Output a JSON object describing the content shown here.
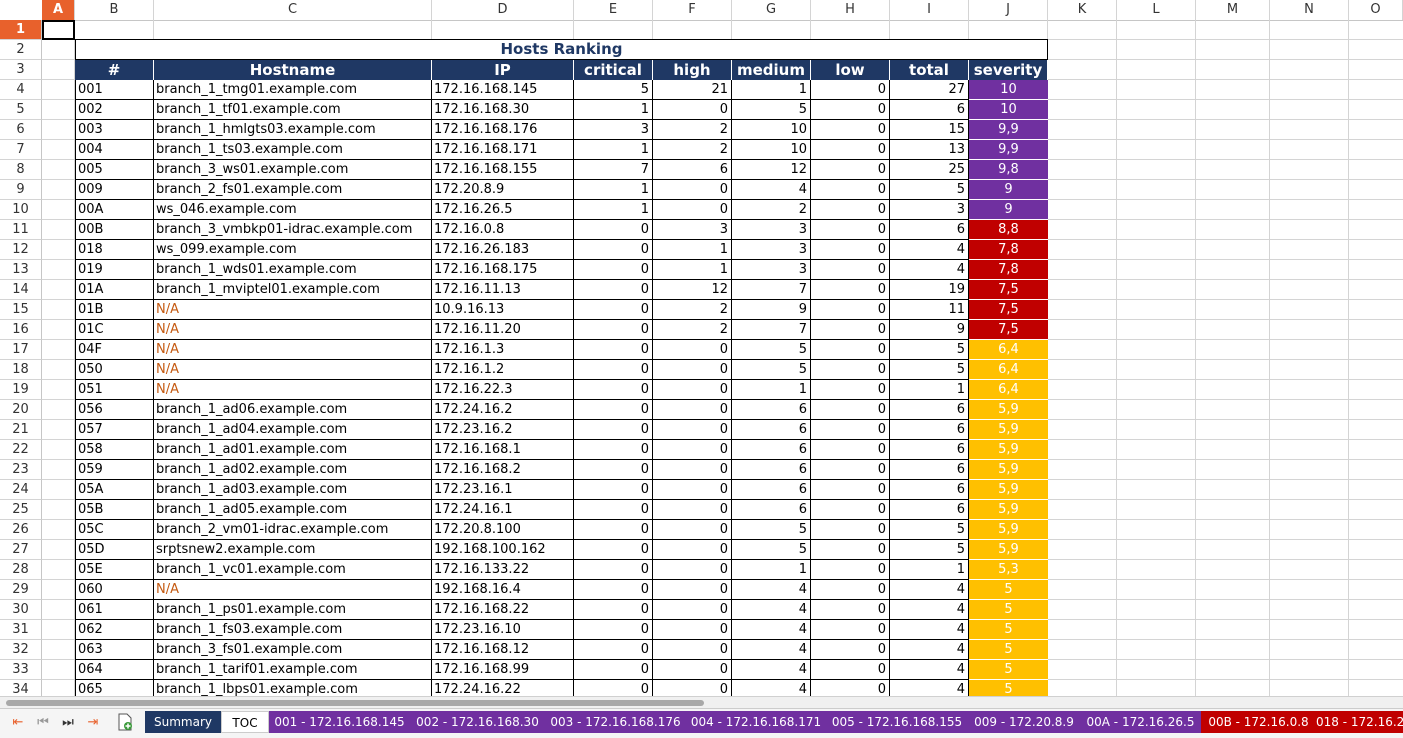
{
  "columns": [
    "A",
    "B",
    "C",
    "D",
    "E",
    "F",
    "G",
    "H",
    "I",
    "J",
    "K",
    "L",
    "M",
    "N",
    "O"
  ],
  "active_column": "A",
  "active_row": "1",
  "rows": [
    "1",
    "2",
    "3",
    "4",
    "5",
    "6",
    "7",
    "8",
    "9",
    "10",
    "11",
    "12",
    "13",
    "14",
    "15",
    "16",
    "17",
    "18",
    "19",
    "20",
    "21",
    "22",
    "23",
    "24",
    "25",
    "26",
    "27",
    "28",
    "29",
    "30",
    "31",
    "32",
    "33",
    "34"
  ],
  "sheet_title": "Hosts Ranking",
  "headers": [
    "#",
    "Hostname",
    "IP",
    "critical",
    "high",
    "medium",
    "low",
    "total",
    "severity"
  ],
  "severity_colors": {
    "purple": "#7030a0",
    "red": "#c00000",
    "orange": "#ffc000"
  },
  "hosts": [
    {
      "id": "001",
      "host": "branch_1_tmg01.example.com",
      "ip": "172.16.168.145",
      "critical": "5",
      "high": "21",
      "medium": "1",
      "low": "0",
      "total": "27",
      "severity": "10",
      "level": "purple"
    },
    {
      "id": "002",
      "host": "branch_1_tf01.example.com",
      "ip": "172.16.168.30",
      "critical": "1",
      "high": "0",
      "medium": "5",
      "low": "0",
      "total": "6",
      "severity": "10",
      "level": "purple"
    },
    {
      "id": "003",
      "host": "branch_1_hmlgts03.example.com",
      "ip": "172.16.168.176",
      "critical": "3",
      "high": "2",
      "medium": "10",
      "low": "0",
      "total": "15",
      "severity": "9,9",
      "level": "purple"
    },
    {
      "id": "004",
      "host": "branch_1_ts03.example.com",
      "ip": "172.16.168.171",
      "critical": "1",
      "high": "2",
      "medium": "10",
      "low": "0",
      "total": "13",
      "severity": "9,9",
      "level": "purple"
    },
    {
      "id": "005",
      "host": "branch_3_ws01.example.com",
      "ip": "172.16.168.155",
      "critical": "7",
      "high": "6",
      "medium": "12",
      "low": "0",
      "total": "25",
      "severity": "9,8",
      "level": "purple"
    },
    {
      "id": "009",
      "host": "branch_2_fs01.example.com",
      "ip": "172.20.8.9",
      "critical": "1",
      "high": "0",
      "medium": "4",
      "low": "0",
      "total": "5",
      "severity": "9",
      "level": "purple"
    },
    {
      "id": "00A",
      "host": "ws_046.example.com",
      "ip": "172.16.26.5",
      "critical": "1",
      "high": "0",
      "medium": "2",
      "low": "0",
      "total": "3",
      "severity": "9",
      "level": "purple"
    },
    {
      "id": "00B",
      "host": "branch_3_vmbkp01-idrac.example.com",
      "ip": "172.16.0.8",
      "critical": "0",
      "high": "3",
      "medium": "3",
      "low": "0",
      "total": "6",
      "severity": "8,8",
      "level": "red"
    },
    {
      "id": "018",
      "host": "ws_099.example.com",
      "ip": "172.16.26.183",
      "critical": "0",
      "high": "1",
      "medium": "3",
      "low": "0",
      "total": "4",
      "severity": "7,8",
      "level": "red"
    },
    {
      "id": "019",
      "host": "branch_1_wds01.example.com",
      "ip": "172.16.168.175",
      "critical": "0",
      "high": "1",
      "medium": "3",
      "low": "0",
      "total": "4",
      "severity": "7,8",
      "level": "red"
    },
    {
      "id": "01A",
      "host": "branch_1_mviptel01.example.com",
      "ip": "172.16.11.13",
      "critical": "0",
      "high": "12",
      "medium": "7",
      "low": "0",
      "total": "19",
      "severity": "7,5",
      "level": "red"
    },
    {
      "id": "01B",
      "host": "N/A",
      "ip": "10.9.16.13",
      "critical": "0",
      "high": "2",
      "medium": "9",
      "low": "0",
      "total": "11",
      "severity": "7,5",
      "level": "red"
    },
    {
      "id": "01C",
      "host": "N/A",
      "ip": "172.16.11.20",
      "critical": "0",
      "high": "2",
      "medium": "7",
      "low": "0",
      "total": "9",
      "severity": "7,5",
      "level": "red"
    },
    {
      "id": "04F",
      "host": "N/A",
      "ip": "172.16.1.3",
      "critical": "0",
      "high": "0",
      "medium": "5",
      "low": "0",
      "total": "5",
      "severity": "6,4",
      "level": "orange"
    },
    {
      "id": "050",
      "host": "N/A",
      "ip": "172.16.1.2",
      "critical": "0",
      "high": "0",
      "medium": "5",
      "low": "0",
      "total": "5",
      "severity": "6,4",
      "level": "orange"
    },
    {
      "id": "051",
      "host": "N/A",
      "ip": "172.16.22.3",
      "critical": "0",
      "high": "0",
      "medium": "1",
      "low": "0",
      "total": "1",
      "severity": "6,4",
      "level": "orange"
    },
    {
      "id": "056",
      "host": "branch_1_ad06.example.com",
      "ip": "172.24.16.2",
      "critical": "0",
      "high": "0",
      "medium": "6",
      "low": "0",
      "total": "6",
      "severity": "5,9",
      "level": "orange"
    },
    {
      "id": "057",
      "host": "branch_1_ad04.example.com",
      "ip": "172.23.16.2",
      "critical": "0",
      "high": "0",
      "medium": "6",
      "low": "0",
      "total": "6",
      "severity": "5,9",
      "level": "orange"
    },
    {
      "id": "058",
      "host": "branch_1_ad01.example.com",
      "ip": "172.16.168.1",
      "critical": "0",
      "high": "0",
      "medium": "6",
      "low": "0",
      "total": "6",
      "severity": "5,9",
      "level": "orange"
    },
    {
      "id": "059",
      "host": "branch_1_ad02.example.com",
      "ip": "172.16.168.2",
      "critical": "0",
      "high": "0",
      "medium": "6",
      "low": "0",
      "total": "6",
      "severity": "5,9",
      "level": "orange"
    },
    {
      "id": "05A",
      "host": "branch_1_ad03.example.com",
      "ip": "172.23.16.1",
      "critical": "0",
      "high": "0",
      "medium": "6",
      "low": "0",
      "total": "6",
      "severity": "5,9",
      "level": "orange"
    },
    {
      "id": "05B",
      "host": "branch_1_ad05.example.com",
      "ip": "172.24.16.1",
      "critical": "0",
      "high": "0",
      "medium": "6",
      "low": "0",
      "total": "6",
      "severity": "5,9",
      "level": "orange"
    },
    {
      "id": "05C",
      "host": "branch_2_vm01-idrac.example.com",
      "ip": "172.20.8.100",
      "critical": "0",
      "high": "0",
      "medium": "5",
      "low": "0",
      "total": "5",
      "severity": "5,9",
      "level": "orange"
    },
    {
      "id": "05D",
      "host": "srptsnew2.example.com",
      "ip": "192.168.100.162",
      "critical": "0",
      "high": "0",
      "medium": "5",
      "low": "0",
      "total": "5",
      "severity": "5,9",
      "level": "orange"
    },
    {
      "id": "05E",
      "host": "branch_1_vc01.example.com",
      "ip": "172.16.133.22",
      "critical": "0",
      "high": "0",
      "medium": "1",
      "low": "0",
      "total": "1",
      "severity": "5,3",
      "level": "orange"
    },
    {
      "id": "060",
      "host": "N/A",
      "ip": "192.168.16.4",
      "critical": "0",
      "high": "0",
      "medium": "4",
      "low": "0",
      "total": "4",
      "severity": "5",
      "level": "orange"
    },
    {
      "id": "061",
      "host": "branch_1_ps01.example.com",
      "ip": "172.16.168.22",
      "critical": "0",
      "high": "0",
      "medium": "4",
      "low": "0",
      "total": "4",
      "severity": "5",
      "level": "orange"
    },
    {
      "id": "062",
      "host": "branch_1_fs03.example.com",
      "ip": "172.23.16.10",
      "critical": "0",
      "high": "0",
      "medium": "4",
      "low": "0",
      "total": "4",
      "severity": "5",
      "level": "orange"
    },
    {
      "id": "063",
      "host": "branch_3_fs01.example.com",
      "ip": "172.16.168.12",
      "critical": "0",
      "high": "0",
      "medium": "4",
      "low": "0",
      "total": "4",
      "severity": "5",
      "level": "orange"
    },
    {
      "id": "064",
      "host": "branch_1_tarif01.example.com",
      "ip": "172.16.168.99",
      "critical": "0",
      "high": "0",
      "medium": "4",
      "low": "0",
      "total": "4",
      "severity": "5",
      "level": "orange"
    },
    {
      "id": "065",
      "host": "branch_1_lbps01.example.com",
      "ip": "172.24.16.22",
      "critical": "0",
      "high": "0",
      "medium": "4",
      "low": "0",
      "total": "4",
      "severity": "5",
      "level": "orange"
    }
  ],
  "sheet_tabs": [
    {
      "label": "Summary",
      "style": "active"
    },
    {
      "label": "TOC",
      "style": "plain"
    },
    {
      "label": "001 - 172.16.168.145",
      "style": "purple"
    },
    {
      "label": "002 - 172.16.168.30",
      "style": "purple"
    },
    {
      "label": "003 - 172.16.168.176",
      "style": "purple"
    },
    {
      "label": "004 - 172.16.168.171",
      "style": "purple"
    },
    {
      "label": "005 - 172.16.168.155",
      "style": "purple"
    },
    {
      "label": "009 - 172.20.8.9",
      "style": "purple"
    },
    {
      "label": "00A - 172.16.26.5",
      "style": "purple"
    },
    {
      "label": "00B - 172.16.0.8",
      "style": "red"
    },
    {
      "label": "018 - 172.16.2",
      "style": "red"
    }
  ],
  "nav_icons": [
    "first-sheet-icon",
    "prev-sheet-icon",
    "next-sheet-icon",
    "last-sheet-icon",
    "add-sheet-icon"
  ]
}
